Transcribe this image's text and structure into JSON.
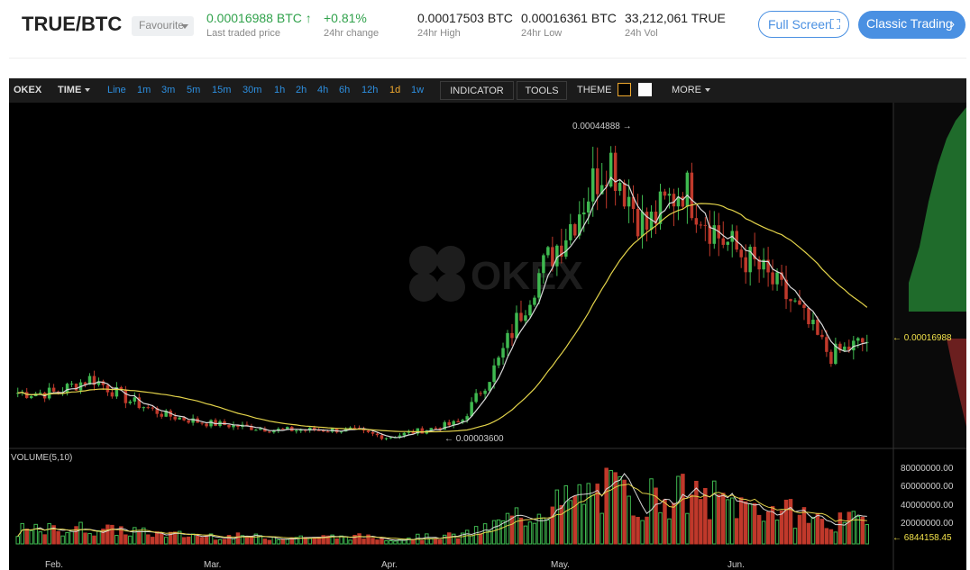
{
  "header": {
    "pair": "TRUE/BTC",
    "favourite_label": "Favourite",
    "last_price": "0.00016988 BTC",
    "last_price_label": "Last traded price",
    "change": "+0.81%",
    "change_label": "24hr change",
    "high": "0.00017503 BTC",
    "high_label": "24hr High",
    "low": "0.00016361 BTC",
    "low_label": "24hr Low",
    "volume": "33,212,061 TRUE",
    "volume_label": "24h Vol",
    "fullscreen_label": "Full Screen",
    "classic_label": "Classic Trading"
  },
  "toolbar": {
    "brand": "OKEX",
    "time_label": "TIME",
    "intervals": [
      "Line",
      "1m",
      "3m",
      "5m",
      "15m",
      "30m",
      "1h",
      "2h",
      "4h",
      "6h",
      "12h",
      "1d",
      "1w"
    ],
    "active_interval": "1d",
    "indicator_label": "INDICATOR",
    "tools_label": "TOOLS",
    "theme_label": "THEME",
    "more_label": "MORE"
  },
  "colors": {
    "up": "#3fb950",
    "down": "#c0392b",
    "ma5": "#d9d9d9",
    "ma30": "#e3d34a",
    "accent": "#4a90e2",
    "active_interval": "#f0a92e"
  },
  "icons": {
    "fullscreen": "expand-icon",
    "classic_arrow": "chevron-right-icon",
    "price_up": "arrow-up-icon"
  },
  "watermark": "OKEX",
  "chart_data": {
    "type": "candlestick",
    "price_axis": {
      "current_price": "0.00016988"
    },
    "annotations": {
      "high_label": "0.00044888",
      "low_label": "0.00003600"
    },
    "x_ticks": [
      "Feb.",
      "Mar.",
      "Apr.",
      "May.",
      "Jun."
    ],
    "close_path": [
      0.0001,
      0.0001,
      0.00012,
      9e-05,
      7e-05,
      6e-05,
      5.5e-05,
      5e-05,
      5e-05,
      5e-05,
      4e-05,
      5e-05,
      6e-05,
      0.00014,
      0.00025,
      0.00033,
      0.00042,
      0.00032,
      0.00038,
      0.00031,
      0.00027,
      0.00022,
      0.00015,
      0.00017
    ],
    "volume_panel": {
      "title": "VOLUME(5,10)",
      "ticks": [
        "80000000.00",
        "60000000.00",
        "40000000.00",
        "20000000.00"
      ],
      "current_volume": "6844158.45"
    }
  }
}
